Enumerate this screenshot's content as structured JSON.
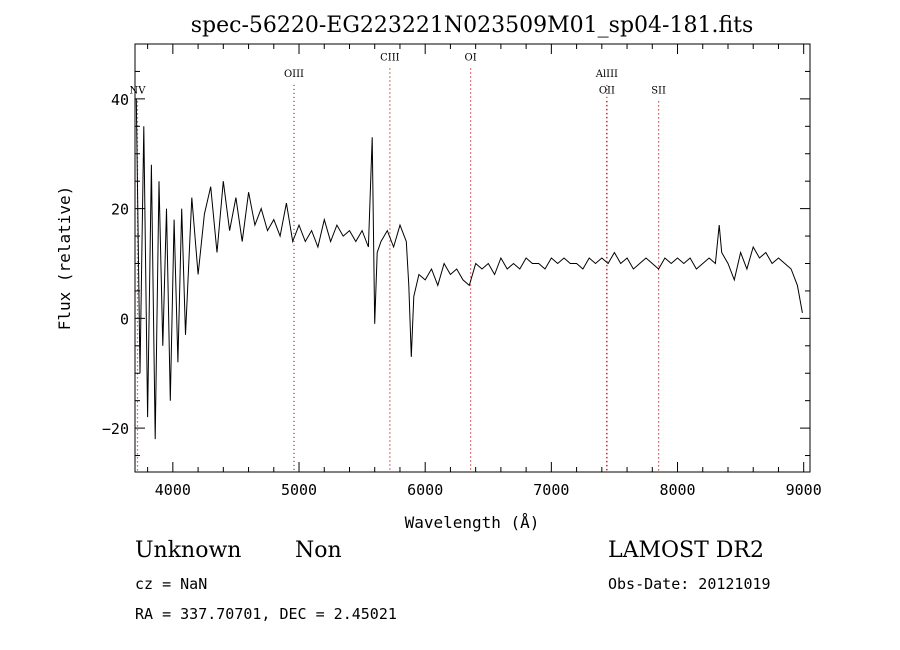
{
  "chart_data": {
    "type": "line",
    "title": "spec-56220-EG223221N023509M01_sp04-181.fits",
    "xlabel": "Wavelength (Å)",
    "ylabel": "Flux (relative)",
    "xlim": [
      3700,
      9050
    ],
    "ylim": [
      -28,
      50
    ],
    "x_ticks": [
      4000,
      5000,
      6000,
      7000,
      8000,
      9000
    ],
    "y_ticks": [
      -20,
      0,
      20,
      40
    ],
    "grid": false,
    "line_color": "#000000",
    "marker_color": "#cc0000",
    "series": [
      {
        "x": [
          3710,
          3740,
          3770,
          3800,
          3830,
          3860,
          3890,
          3920,
          3950,
          3980,
          4010,
          4040,
          4070,
          4100,
          4150,
          4200,
          4250,
          4300,
          4350,
          4400,
          4450,
          4500,
          4550,
          4600,
          4650,
          4700,
          4750,
          4800,
          4850,
          4900,
          4950,
          5000,
          5050,
          5100,
          5150,
          5200,
          5250,
          5300,
          5350,
          5400,
          5450,
          5500,
          5550,
          5580,
          5600,
          5620,
          5650,
          5700,
          5750,
          5800,
          5850,
          5870,
          5890,
          5910,
          5950,
          6000,
          6050,
          6100,
          6150,
          6200,
          6250,
          6300,
          6350,
          6400,
          6450,
          6500,
          6550,
          6600,
          6650,
          6700,
          6750,
          6800,
          6850,
          6900,
          6950,
          7000,
          7050,
          7100,
          7150,
          7200,
          7250,
          7300,
          7350,
          7400,
          7450,
          7500,
          7550,
          7600,
          7650,
          7700,
          7750,
          7800,
          7850,
          7900,
          7950,
          8000,
          8050,
          8100,
          8150,
          8200,
          8250,
          8300,
          8330,
          8350,
          8400,
          8450,
          8500,
          8550,
          8600,
          8650,
          8700,
          8750,
          8800,
          8850,
          8900,
          8950,
          8990
        ],
        "y": [
          40,
          -10,
          35,
          -18,
          28,
          -22,
          25,
          -5,
          20,
          -15,
          18,
          -8,
          20,
          -3,
          22,
          8,
          19,
          24,
          12,
          25,
          16,
          22,
          14,
          23,
          17,
          20,
          16,
          18,
          15,
          21,
          14,
          17,
          14,
          16,
          13,
          18,
          14,
          17,
          15,
          16,
          14,
          16,
          13,
          33,
          -1,
          12,
          14,
          16,
          13,
          17,
          14,
          6,
          -7,
          4,
          8,
          7,
          9,
          6,
          10,
          8,
          9,
          7,
          6,
          10,
          9,
          10,
          8,
          11,
          9,
          10,
          9,
          11,
          10,
          10,
          9,
          11,
          10,
          11,
          10,
          10,
          9,
          11,
          10,
          11,
          10,
          12,
          10,
          11,
          9,
          10,
          11,
          10,
          9,
          11,
          10,
          11,
          10,
          11,
          9,
          10,
          11,
          10,
          17,
          12,
          10,
          7,
          12,
          9,
          13,
          11,
          12,
          10,
          11,
          10,
          9,
          6,
          1
        ]
      }
    ],
    "lines": [
      {
        "label": "NV",
        "x": 3720,
        "label_y": 41
      },
      {
        "label": "OIII",
        "x": 4960,
        "label_y": 44
      },
      {
        "label": "CIII",
        "x": 5720,
        "label_y": 47
      },
      {
        "label": "OI",
        "x": 6360,
        "label_y": 47
      },
      {
        "label": "AlIII",
        "x": 7440,
        "label_y": 44
      },
      {
        "label": "OII",
        "x": 7440,
        "label_y": 41
      },
      {
        "label": "SII",
        "x": 7850,
        "label_y": 41
      }
    ]
  },
  "info": {
    "class": "Unknown",
    "subclass": "Non",
    "survey": "LAMOST DR2",
    "cz": "cz = NaN",
    "obs_date": "Obs-Date: 20121019",
    "radec": "RA = 337.70701, DEC =   2.45021"
  }
}
